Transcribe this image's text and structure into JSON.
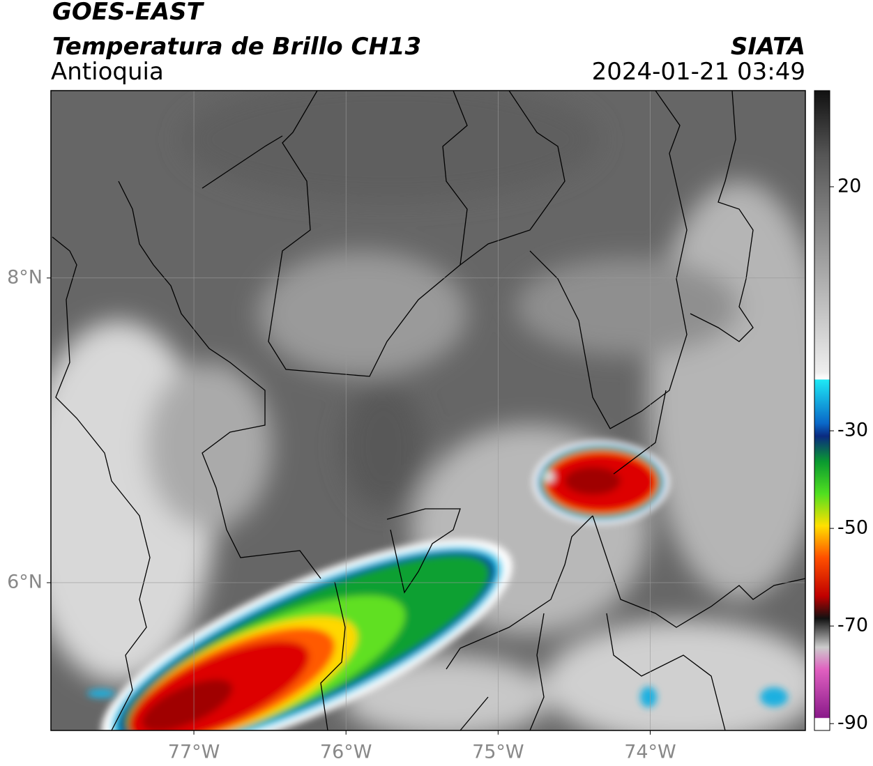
{
  "header": {
    "satellite": "GOES-EAST",
    "product": "Temperatura de Brillo CH13",
    "region": "Antioquia",
    "source": "SIATA",
    "datetime": "2024-01-21 03:49"
  },
  "map": {
    "xlim": [
      -77.94,
      -72.98
    ],
    "ylim": [
      5.03,
      9.23
    ],
    "xticks": [
      {
        "value": -77,
        "label": "77°W"
      },
      {
        "value": -76,
        "label": "76°W"
      },
      {
        "value": -75,
        "label": "75°W"
      },
      {
        "value": -74,
        "label": "74°W"
      }
    ],
    "yticks": [
      {
        "value": 8,
        "label": "8°N"
      },
      {
        "value": 6,
        "label": "6°N"
      }
    ],
    "grid": true
  },
  "colorbar": {
    "range": [
      -91.4,
      39.7
    ],
    "ticks": [
      20,
      -30,
      -50,
      -70,
      -90
    ]
  }
}
